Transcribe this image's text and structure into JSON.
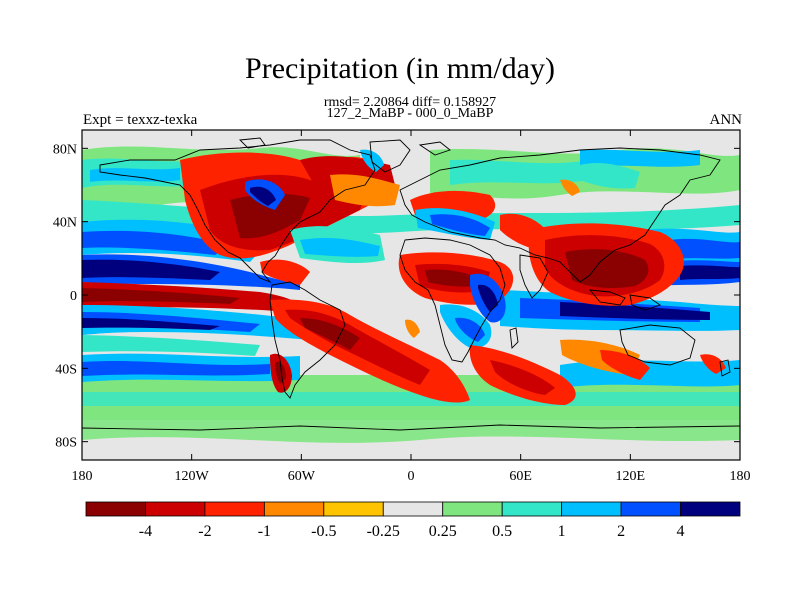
{
  "title": "Precipitation (in mm/day)",
  "subtitle_stats": "rmsd= 2.20864 diff= 0.158927",
  "subtitle_periods": "127_2_MaBP - 000_0_MaBP",
  "experiment_label": "Expt = texxz-texka",
  "season_label": "ANN",
  "map": {
    "lon_range": [
      -180,
      180
    ],
    "lat_range": [
      -90,
      90
    ],
    "x_ticks": [
      {
        "label": "180",
        "value": -180
      },
      {
        "label": "120W",
        "value": -120
      },
      {
        "label": "60W",
        "value": -60
      },
      {
        "label": "0",
        "value": 0
      },
      {
        "label": "60E",
        "value": 60
      },
      {
        "label": "120E",
        "value": 120
      },
      {
        "label": "180",
        "value": 180
      }
    ],
    "y_ticks": [
      {
        "label": "80N",
        "value": 80
      },
      {
        "label": "40N",
        "value": 40
      },
      {
        "label": "0",
        "value": 0
      },
      {
        "label": "40S",
        "value": -40
      },
      {
        "label": "80S",
        "value": -80
      }
    ]
  },
  "colorbar": {
    "labels": [
      "-4",
      "-2",
      "-1",
      "-0.5",
      "-0.25",
      "0.25",
      "0.5",
      "1",
      "2",
      "4"
    ],
    "colors": [
      "#8b0000",
      "#cc0000",
      "#ff2200",
      "#ff8800",
      "#ffc400",
      "#e6e6e6",
      "#7fe67f",
      "#33e6c8",
      "#00bfff",
      "#0050ff",
      "#00007f"
    ]
  }
}
